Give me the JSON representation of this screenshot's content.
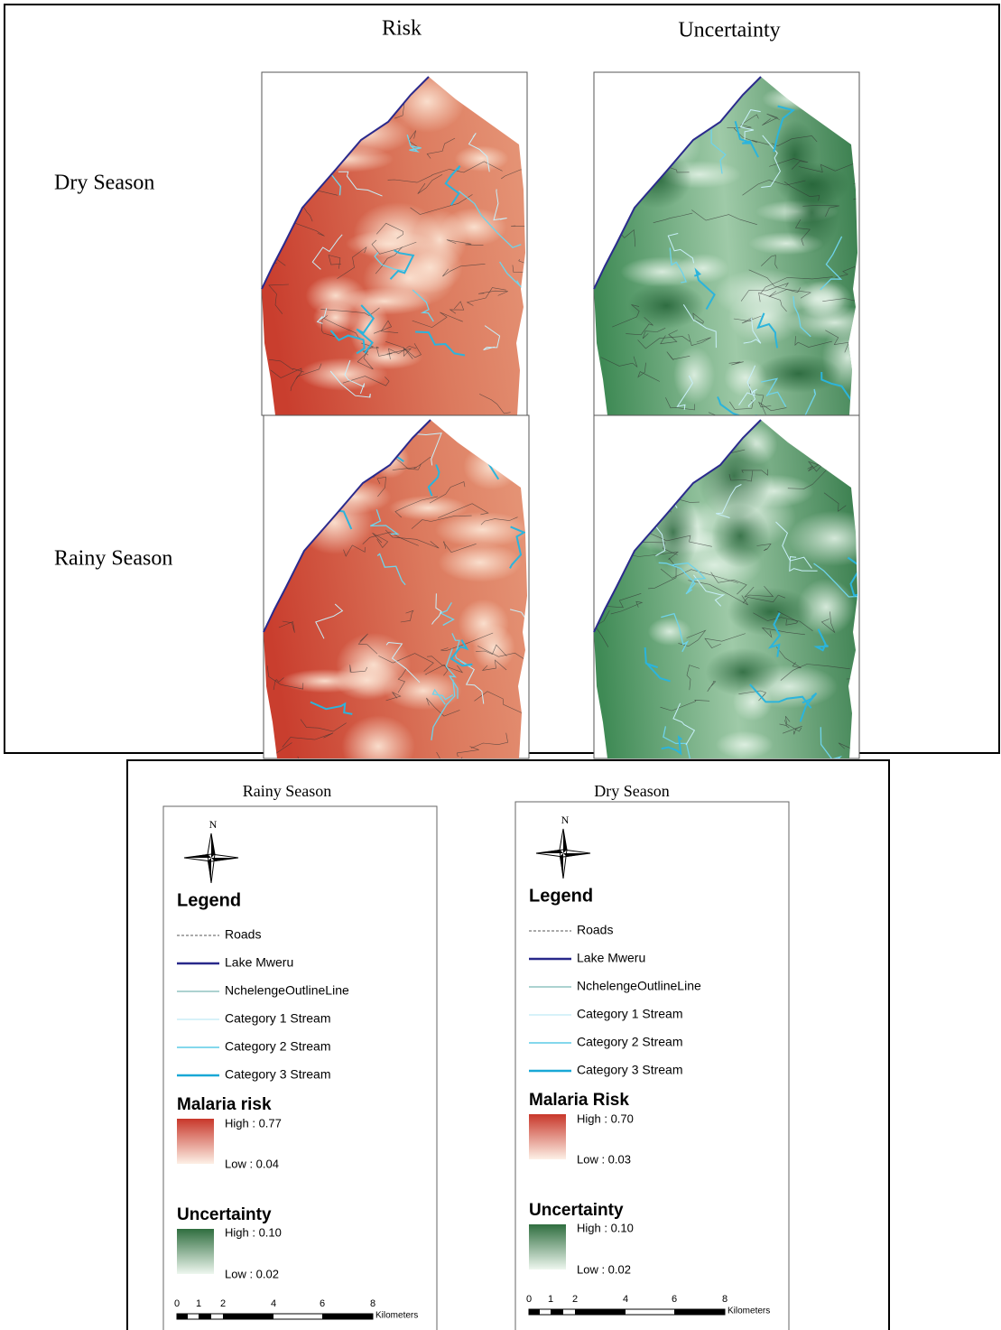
{
  "column_titles": [
    "Risk",
    "Uncertainty"
  ],
  "row_labels": [
    "Dry Season",
    "Rainy Season"
  ],
  "legends": [
    {
      "title": "Rainy Season",
      "north": "N",
      "legend_title": "Legend",
      "items": [
        "Roads",
        "Lake Mweru",
        "NchelengeOutlineLine",
        "Category 1 Stream",
        "Category 2 Stream",
        "Category 3 Stream"
      ],
      "risk_title": "Malaria risk",
      "risk_high": "High : 0.77",
      "risk_low": "Low : 0.04",
      "unc_title": "Uncertainty",
      "unc_high": "High : 0.10",
      "unc_low": "Low : 0.02",
      "scale_ticks": [
        "0",
        "1",
        "2",
        "4",
        "6",
        "8"
      ],
      "scale_unit": "Kilometers"
    },
    {
      "title": "Dry Season",
      "north": "N",
      "legend_title": "Legend",
      "items": [
        "Roads",
        "Lake Mweru",
        "NchelengeOutlineLine",
        "Category 1 Stream",
        "Category 2 Stream",
        "Category 3 Stream"
      ],
      "risk_title": "Malaria Risk",
      "risk_high": "High : 0.70",
      "risk_low": "Low : 0.03",
      "unc_title": "Uncertainty",
      "unc_high": "High : 0.10",
      "unc_low": "Low : 0.02",
      "scale_ticks": [
        "0",
        "1",
        "2",
        "4",
        "6",
        "8"
      ],
      "scale_unit": "Kilometers"
    }
  ]
}
